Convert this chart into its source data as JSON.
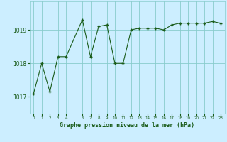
{
  "x": [
    0,
    1,
    2,
    3,
    4,
    6,
    7,
    8,
    9,
    10,
    11,
    12,
    13,
    14,
    15,
    16,
    17,
    18,
    19,
    20,
    21,
    22,
    23
  ],
  "y": [
    1017.1,
    1018.0,
    1017.15,
    1018.2,
    1018.2,
    1019.3,
    1018.2,
    1019.1,
    1019.15,
    1018.0,
    1018.0,
    1019.0,
    1019.05,
    1019.05,
    1019.05,
    1019.0,
    1019.15,
    1019.2,
    1019.2,
    1019.2,
    1019.2,
    1019.25,
    1019.2
  ],
  "bg_color": "#cceeff",
  "line_color": "#1a5c1a",
  "marker_color": "#1a5c1a",
  "grid_color": "#88cccc",
  "yticks": [
    1017,
    1018,
    1019
  ],
  "xtick_positions": [
    0,
    1,
    2,
    3,
    4,
    6,
    7,
    8,
    9,
    10,
    11,
    12,
    13,
    14,
    15,
    16,
    17,
    18,
    19,
    20,
    21,
    22,
    23
  ],
  "xtick_labels": [
    "0",
    "1",
    "2",
    "3",
    "4",
    "6",
    "7",
    "8",
    "9",
    "10",
    "11",
    "12",
    "13",
    "14",
    "15",
    "16",
    "17",
    "18",
    "19",
    "20",
    "21",
    "22",
    "23"
  ],
  "xlabel": "Graphe pression niveau de la mer (hPa)",
  "ylim": [
    1016.5,
    1019.85
  ],
  "xlim": [
    -0.5,
    23.5
  ]
}
